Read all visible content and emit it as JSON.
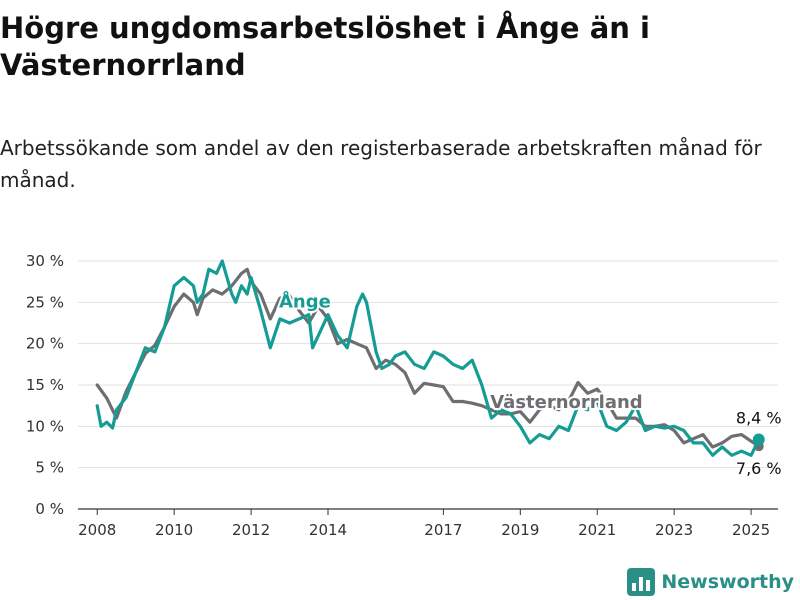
{
  "title": "Högre ungdomsarbetslöshet i Ånge än i Västernorrland",
  "subtitle": "Arbetssökande som andel av den registerbaserade arbetskraften månad för månad.",
  "logo": {
    "text": "Newsworthy",
    "icon": "bar-chart-icon"
  },
  "colors": {
    "ange": "#159c94",
    "vasternorrland": "#6e6e72",
    "grid": "#e1e1e1",
    "axis": "#333333"
  },
  "chart_data": {
    "type": "line",
    "ylabel": "",
    "xlabel": "",
    "ylim": [
      0,
      30
    ],
    "xlim": [
      2007.5,
      2025.7
    ],
    "y_ticks": [
      0,
      5,
      10,
      15,
      20,
      25,
      30
    ],
    "y_tick_labels": [
      "0 %",
      "5 %",
      "10 %",
      "15 %",
      "20 %",
      "25 %",
      "30 %"
    ],
    "x_ticks": [
      2008,
      2010,
      2012,
      2014,
      2017,
      2019,
      2021,
      2023,
      2025
    ],
    "x_tick_labels": [
      "2008",
      "2010",
      "2012",
      "2014",
      "2017",
      "2019",
      "2021",
      "2023",
      "2025"
    ],
    "grid": true,
    "series": [
      {
        "name": "Västernorrland",
        "end_label": "7,6 %",
        "points": [
          [
            2008.0,
            15.0
          ],
          [
            2008.25,
            13.4
          ],
          [
            2008.5,
            11.0
          ],
          [
            2008.75,
            14.2
          ],
          [
            2009.0,
            16.5
          ],
          [
            2009.25,
            18.8
          ],
          [
            2009.5,
            19.8
          ],
          [
            2009.75,
            22.0
          ],
          [
            2010.0,
            24.5
          ],
          [
            2010.25,
            26.0
          ],
          [
            2010.5,
            25.0
          ],
          [
            2010.6,
            23.5
          ],
          [
            2010.75,
            25.5
          ],
          [
            2011.0,
            26.5
          ],
          [
            2011.25,
            26.0
          ],
          [
            2011.5,
            27.0
          ],
          [
            2011.75,
            28.5
          ],
          [
            2011.9,
            29.0
          ],
          [
            2012.0,
            27.5
          ],
          [
            2012.25,
            26.0
          ],
          [
            2012.5,
            23.0
          ],
          [
            2012.75,
            25.5
          ],
          [
            2013.0,
            25.8
          ],
          [
            2013.25,
            24.0
          ],
          [
            2013.5,
            22.5
          ],
          [
            2013.75,
            24.5
          ],
          [
            2014.0,
            23.0
          ],
          [
            2014.25,
            20.0
          ],
          [
            2014.5,
            20.5
          ],
          [
            2014.75,
            20.0
          ],
          [
            2015.0,
            19.5
          ],
          [
            2015.25,
            17.0
          ],
          [
            2015.5,
            18.0
          ],
          [
            2015.75,
            17.5
          ],
          [
            2016.0,
            16.5
          ],
          [
            2016.25,
            14.0
          ],
          [
            2016.5,
            15.2
          ],
          [
            2016.75,
            15.0
          ],
          [
            2017.0,
            14.8
          ],
          [
            2017.25,
            13.0
          ],
          [
            2017.5,
            13.0
          ],
          [
            2017.75,
            12.8
          ],
          [
            2018.0,
            12.5
          ],
          [
            2018.25,
            12.0
          ],
          [
            2018.5,
            11.5
          ],
          [
            2018.75,
            11.5
          ],
          [
            2019.0,
            11.8
          ],
          [
            2019.25,
            10.5
          ],
          [
            2019.5,
            12.0
          ],
          [
            2019.75,
            12.5
          ],
          [
            2020.0,
            12.0
          ],
          [
            2020.25,
            13.0
          ],
          [
            2020.5,
            15.3
          ],
          [
            2020.75,
            14.0
          ],
          [
            2021.0,
            14.5
          ],
          [
            2021.25,
            13.0
          ],
          [
            2021.5,
            11.0
          ],
          [
            2021.75,
            11.0
          ],
          [
            2022.0,
            11.0
          ],
          [
            2022.25,
            10.0
          ],
          [
            2022.5,
            10.0
          ],
          [
            2022.75,
            10.2
          ],
          [
            2023.0,
            9.5
          ],
          [
            2023.25,
            8.0
          ],
          [
            2023.5,
            8.5
          ],
          [
            2023.75,
            9.0
          ],
          [
            2024.0,
            7.5
          ],
          [
            2024.25,
            8.0
          ],
          [
            2024.5,
            8.8
          ],
          [
            2024.75,
            9.0
          ],
          [
            2025.0,
            8.2
          ],
          [
            2025.2,
            7.6
          ]
        ]
      },
      {
        "name": "Ånge",
        "end_label": "8,4 %",
        "points": [
          [
            2008.0,
            12.5
          ],
          [
            2008.1,
            10.0
          ],
          [
            2008.25,
            10.5
          ],
          [
            2008.4,
            9.8
          ],
          [
            2008.5,
            12.0
          ],
          [
            2008.75,
            13.5
          ],
          [
            2009.0,
            16.5
          ],
          [
            2009.25,
            19.5
          ],
          [
            2009.5,
            19.0
          ],
          [
            2009.75,
            22.0
          ],
          [
            2010.0,
            27.0
          ],
          [
            2010.25,
            28.0
          ],
          [
            2010.5,
            27.0
          ],
          [
            2010.6,
            25.0
          ],
          [
            2010.75,
            26.0
          ],
          [
            2010.9,
            29.0
          ],
          [
            2011.1,
            28.5
          ],
          [
            2011.25,
            30.0
          ],
          [
            2011.5,
            26.0
          ],
          [
            2011.6,
            25.0
          ],
          [
            2011.75,
            27.0
          ],
          [
            2011.9,
            26.0
          ],
          [
            2012.0,
            28.0
          ],
          [
            2012.25,
            24.0
          ],
          [
            2012.5,
            19.5
          ],
          [
            2012.75,
            23.0
          ],
          [
            2013.0,
            22.5
          ],
          [
            2013.25,
            23.0
          ],
          [
            2013.5,
            23.5
          ],
          [
            2013.6,
            19.5
          ],
          [
            2013.75,
            21.0
          ],
          [
            2014.0,
            23.5
          ],
          [
            2014.25,
            21.0
          ],
          [
            2014.5,
            19.5
          ],
          [
            2014.75,
            24.5
          ],
          [
            2014.9,
            26.0
          ],
          [
            2015.0,
            25.0
          ],
          [
            2015.25,
            19.0
          ],
          [
            2015.4,
            17.0
          ],
          [
            2015.6,
            17.5
          ],
          [
            2015.75,
            18.5
          ],
          [
            2016.0,
            19.0
          ],
          [
            2016.25,
            17.5
          ],
          [
            2016.5,
            17.0
          ],
          [
            2016.75,
            19.0
          ],
          [
            2017.0,
            18.5
          ],
          [
            2017.25,
            17.5
          ],
          [
            2017.5,
            17.0
          ],
          [
            2017.75,
            18.0
          ],
          [
            2018.0,
            15.0
          ],
          [
            2018.25,
            11.0
          ],
          [
            2018.5,
            12.0
          ],
          [
            2018.75,
            11.5
          ],
          [
            2019.0,
            10.0
          ],
          [
            2019.25,
            8.0
          ],
          [
            2019.5,
            9.0
          ],
          [
            2019.75,
            8.5
          ],
          [
            2020.0,
            10.0
          ],
          [
            2020.25,
            9.5
          ],
          [
            2020.5,
            12.5
          ],
          [
            2020.75,
            12.0
          ],
          [
            2021.0,
            13.0
          ],
          [
            2021.25,
            10.0
          ],
          [
            2021.5,
            9.5
          ],
          [
            2021.75,
            10.5
          ],
          [
            2022.0,
            12.5
          ],
          [
            2022.25,
            9.5
          ],
          [
            2022.5,
            10.0
          ],
          [
            2022.75,
            9.8
          ],
          [
            2023.0,
            10.0
          ],
          [
            2023.25,
            9.5
          ],
          [
            2023.5,
            8.0
          ],
          [
            2023.75,
            8.0
          ],
          [
            2024.0,
            6.5
          ],
          [
            2024.25,
            7.5
          ],
          [
            2024.5,
            6.5
          ],
          [
            2024.75,
            7.0
          ],
          [
            2025.0,
            6.5
          ],
          [
            2025.2,
            8.4
          ]
        ]
      }
    ]
  }
}
